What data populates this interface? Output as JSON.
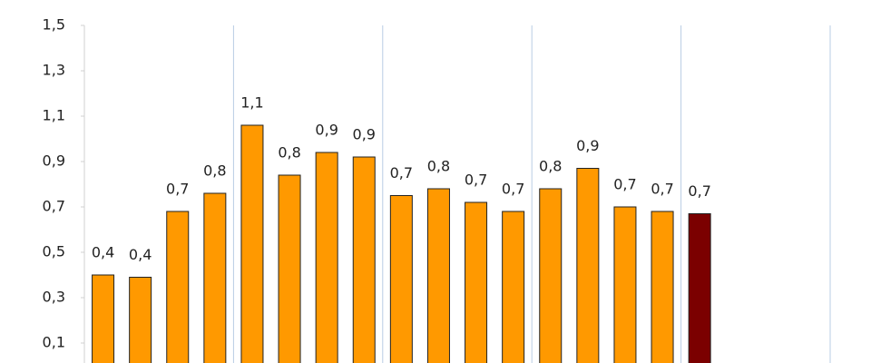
{
  "chart_data": {
    "type": "bar",
    "values": [
      0.4,
      0.39,
      0.68,
      0.76,
      1.06,
      0.84,
      0.94,
      0.92,
      0.75,
      0.78,
      0.72,
      0.68,
      0.78,
      0.87,
      0.7,
      0.68,
      0.67
    ],
    "value_labels": [
      "0,4",
      "0,4",
      "0,7",
      "0,8",
      "1,1",
      "0,8",
      "0,9",
      "0,9",
      "0,7",
      "0,8",
      "0,7",
      "0,7",
      "0,8",
      "0,9",
      "0,7",
      "0,7",
      "0,7"
    ],
    "colors": [
      "#ff9900",
      "#ff9900",
      "#ff9900",
      "#ff9900",
      "#ff9900",
      "#ff9900",
      "#ff9900",
      "#ff9900",
      "#ff9900",
      "#ff9900",
      "#ff9900",
      "#ff9900",
      "#ff9900",
      "#ff9900",
      "#ff9900",
      "#ff9900",
      "#7b0000"
    ],
    "ylim": [
      0.012,
      1.5
    ],
    "yticks": [
      {
        "value": 0.1,
        "label": "0,1"
      },
      {
        "value": 0.3,
        "label": "0,3"
      },
      {
        "value": 0.5,
        "label": "0,5"
      },
      {
        "value": 0.7,
        "label": "0,7"
      },
      {
        "value": 0.9,
        "label": "0,9"
      },
      {
        "value": 1.1,
        "label": "1,1"
      },
      {
        "value": 1.3,
        "label": "1,3"
      },
      {
        "value": 1.5,
        "label": "1,5"
      }
    ]
  }
}
